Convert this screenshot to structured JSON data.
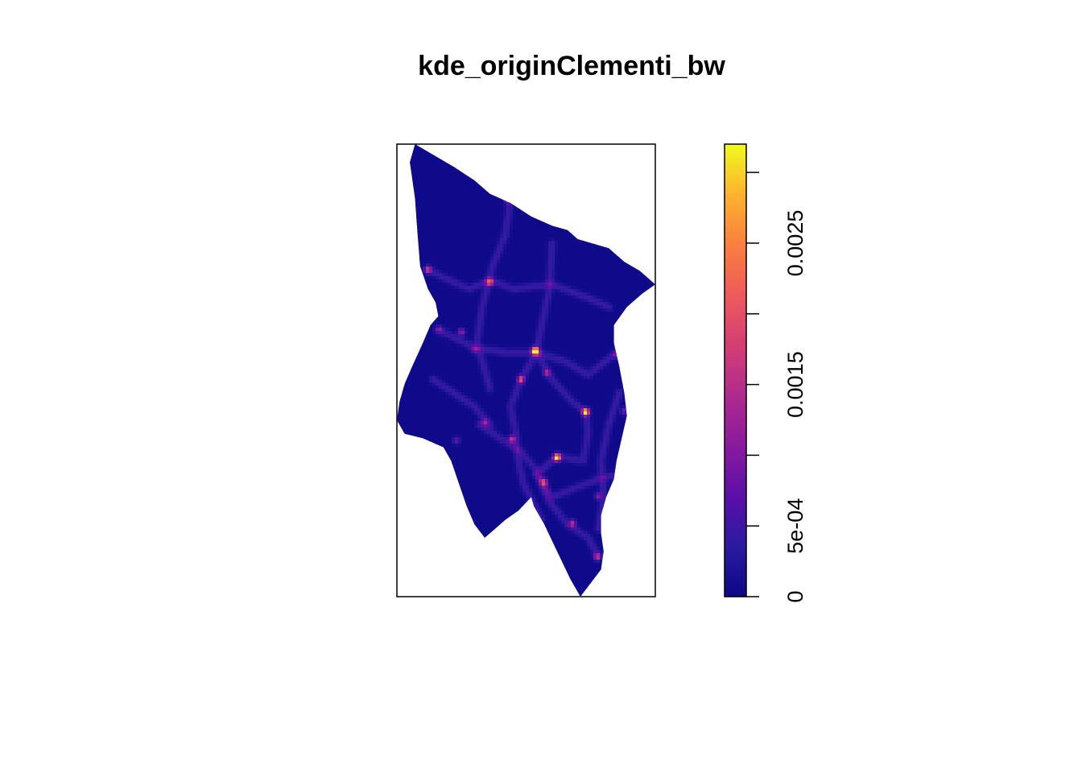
{
  "chart_data": {
    "type": "heatmap",
    "title": "kde_originClementi_bw",
    "xlabel": "",
    "ylabel": "",
    "grid": false,
    "legend_placement": "right",
    "colorbar": {
      "range": [
        0,
        0.0032
      ],
      "ticks": [
        0,
        0.0005,
        0.001,
        0.0015,
        0.002,
        0.0025,
        0.003
      ],
      "tick_labels": [
        "0",
        "5e-04",
        "",
        "0.0015",
        "",
        "0.0025",
        ""
      ],
      "colors": [
        "#0D0887",
        "#2A1BA0",
        "#5B0FA8",
        "#8A1A9E",
        "#B02A8F",
        "#D33F73",
        "#EE5A5C",
        "#F97F3E",
        "#FDB22F",
        "#F0F921"
      ]
    },
    "background_density": 3e-05,
    "hotspots": [
      {
        "x": 0.535,
        "y": 0.457,
        "value": 0.0032
      },
      {
        "x": 0.73,
        "y": 0.592,
        "value": 0.0031
      },
      {
        "x": 0.62,
        "y": 0.693,
        "value": 0.0026
      },
      {
        "x": 0.48,
        "y": 0.52,
        "value": 0.0017
      },
      {
        "x": 0.36,
        "y": 0.305,
        "value": 0.0016
      },
      {
        "x": 0.12,
        "y": 0.277,
        "value": 0.0016
      },
      {
        "x": 0.445,
        "y": 0.652,
        "value": 0.0015
      },
      {
        "x": 0.57,
        "y": 0.747,
        "value": 0.0015
      },
      {
        "x": 0.68,
        "y": 0.838,
        "value": 0.0014
      },
      {
        "x": 0.775,
        "y": 0.912,
        "value": 0.0014
      },
      {
        "x": 0.43,
        "y": 0.123,
        "value": 0.0013
      },
      {
        "x": 0.25,
        "y": 0.415,
        "value": 0.0012
      },
      {
        "x": 0.58,
        "y": 0.505,
        "value": 0.0011
      },
      {
        "x": 0.34,
        "y": 0.615,
        "value": 0.001
      },
      {
        "x": 0.78,
        "y": 0.778,
        "value": 0.001
      },
      {
        "x": 0.88,
        "y": 0.59,
        "value": 0.0009
      },
      {
        "x": 0.85,
        "y": 0.465,
        "value": 0.0008
      },
      {
        "x": 0.23,
        "y": 0.655,
        "value": 0.0008
      },
      {
        "x": 0.165,
        "y": 0.41,
        "value": 0.0007
      },
      {
        "x": 0.3,
        "y": 0.455,
        "value": 0.0007
      }
    ],
    "roads": [
      [
        [
          0.16,
          0.41
        ],
        [
          0.3,
          0.45
        ],
        [
          0.42,
          0.46
        ],
        [
          0.54,
          0.46
        ],
        [
          0.65,
          0.48
        ],
        [
          0.74,
          0.51
        ],
        [
          0.85,
          0.46
        ]
      ],
      [
        [
          0.44,
          0.12
        ],
        [
          0.42,
          0.2
        ],
        [
          0.37,
          0.27
        ],
        [
          0.33,
          0.36
        ],
        [
          0.31,
          0.44
        ],
        [
          0.36,
          0.54
        ]
      ],
      [
        [
          0.6,
          0.22
        ],
        [
          0.59,
          0.32
        ],
        [
          0.56,
          0.4
        ],
        [
          0.54,
          0.46
        ],
        [
          0.48,
          0.52
        ],
        [
          0.44,
          0.58
        ],
        [
          0.46,
          0.64
        ],
        [
          0.47,
          0.7
        ],
        [
          0.49,
          0.75
        ],
        [
          0.56,
          0.83
        ]
      ],
      [
        [
          0.54,
          0.46
        ],
        [
          0.6,
          0.52
        ],
        [
          0.68,
          0.57
        ],
        [
          0.73,
          0.59
        ],
        [
          0.74,
          0.64
        ],
        [
          0.72,
          0.7
        ],
        [
          0.62,
          0.69
        ]
      ],
      [
        [
          0.32,
          0.62
        ],
        [
          0.4,
          0.65
        ],
        [
          0.48,
          0.68
        ],
        [
          0.54,
          0.72
        ],
        [
          0.59,
          0.79
        ],
        [
          0.66,
          0.84
        ],
        [
          0.74,
          0.87
        ],
        [
          0.78,
          0.91
        ]
      ],
      [
        [
          0.62,
          0.69
        ],
        [
          0.58,
          0.71
        ],
        [
          0.54,
          0.73
        ],
        [
          0.6,
          0.78
        ],
        [
          0.69,
          0.76
        ],
        [
          0.78,
          0.74
        ],
        [
          0.85,
          0.73
        ]
      ],
      [
        [
          0.13,
          0.28
        ],
        [
          0.2,
          0.3
        ],
        [
          0.28,
          0.32
        ],
        [
          0.36,
          0.3
        ],
        [
          0.45,
          0.32
        ],
        [
          0.6,
          0.31
        ],
        [
          0.74,
          0.34
        ],
        [
          0.82,
          0.36
        ]
      ],
      [
        [
          0.14,
          0.52
        ],
        [
          0.22,
          0.55
        ],
        [
          0.3,
          0.58
        ],
        [
          0.36,
          0.62
        ]
      ],
      [
        [
          0.86,
          0.55
        ],
        [
          0.82,
          0.62
        ],
        [
          0.79,
          0.7
        ],
        [
          0.8,
          0.78
        ],
        [
          0.78,
          0.85
        ]
      ]
    ]
  }
}
